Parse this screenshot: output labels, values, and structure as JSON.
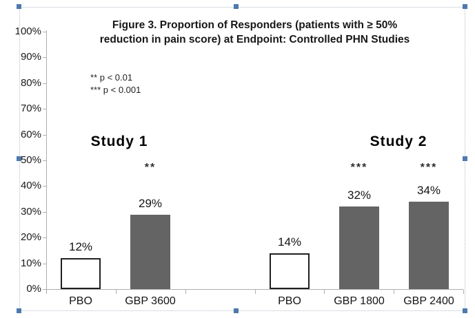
{
  "selection": {
    "accent_color": "#4d7aad",
    "border_color": "#b2bcc8"
  },
  "chart_data": {
    "type": "bar",
    "title_line1": "Figure 3. Proportion of Responders (patients with ≥ 50%",
    "title_line2": "reduction in pain score) at Endpoint: Controlled PHN Studies",
    "legend": [
      "** p < 0.01",
      "*** p < 0.001"
    ],
    "y_ticks": [
      "0%",
      "10%",
      "20%",
      "30%",
      "40%",
      "50%",
      "60%",
      "70%",
      "80%",
      "90%",
      "100%"
    ],
    "ylim": [
      0,
      100
    ],
    "grid": false,
    "legend_position": "upper-left",
    "groups": [
      {
        "label": "Study 1",
        "bars": [
          {
            "category": "PBO",
            "value": 12,
            "value_label": "12%",
            "fill": "light",
            "significance": ""
          },
          {
            "category": "GBP 3600",
            "value": 29,
            "value_label": "29%",
            "fill": "dark",
            "significance": "**"
          }
        ]
      },
      {
        "label": "Study 2",
        "bars": [
          {
            "category": "PBO",
            "value": 14,
            "value_label": "14%",
            "fill": "light",
            "significance": ""
          },
          {
            "category": "GBP 1800",
            "value": 32,
            "value_label": "32%",
            "fill": "dark",
            "significance": "***"
          },
          {
            "category": "GBP 2400",
            "value": 34,
            "value_label": "34%",
            "fill": "dark",
            "significance": "***"
          }
        ]
      }
    ],
    "colors": {
      "bar_dark": "#646464",
      "bar_light": "#ffffff",
      "bar_border": "#1f1f1f",
      "axis": "#aeaeae",
      "text": "#1a1a1a"
    }
  }
}
